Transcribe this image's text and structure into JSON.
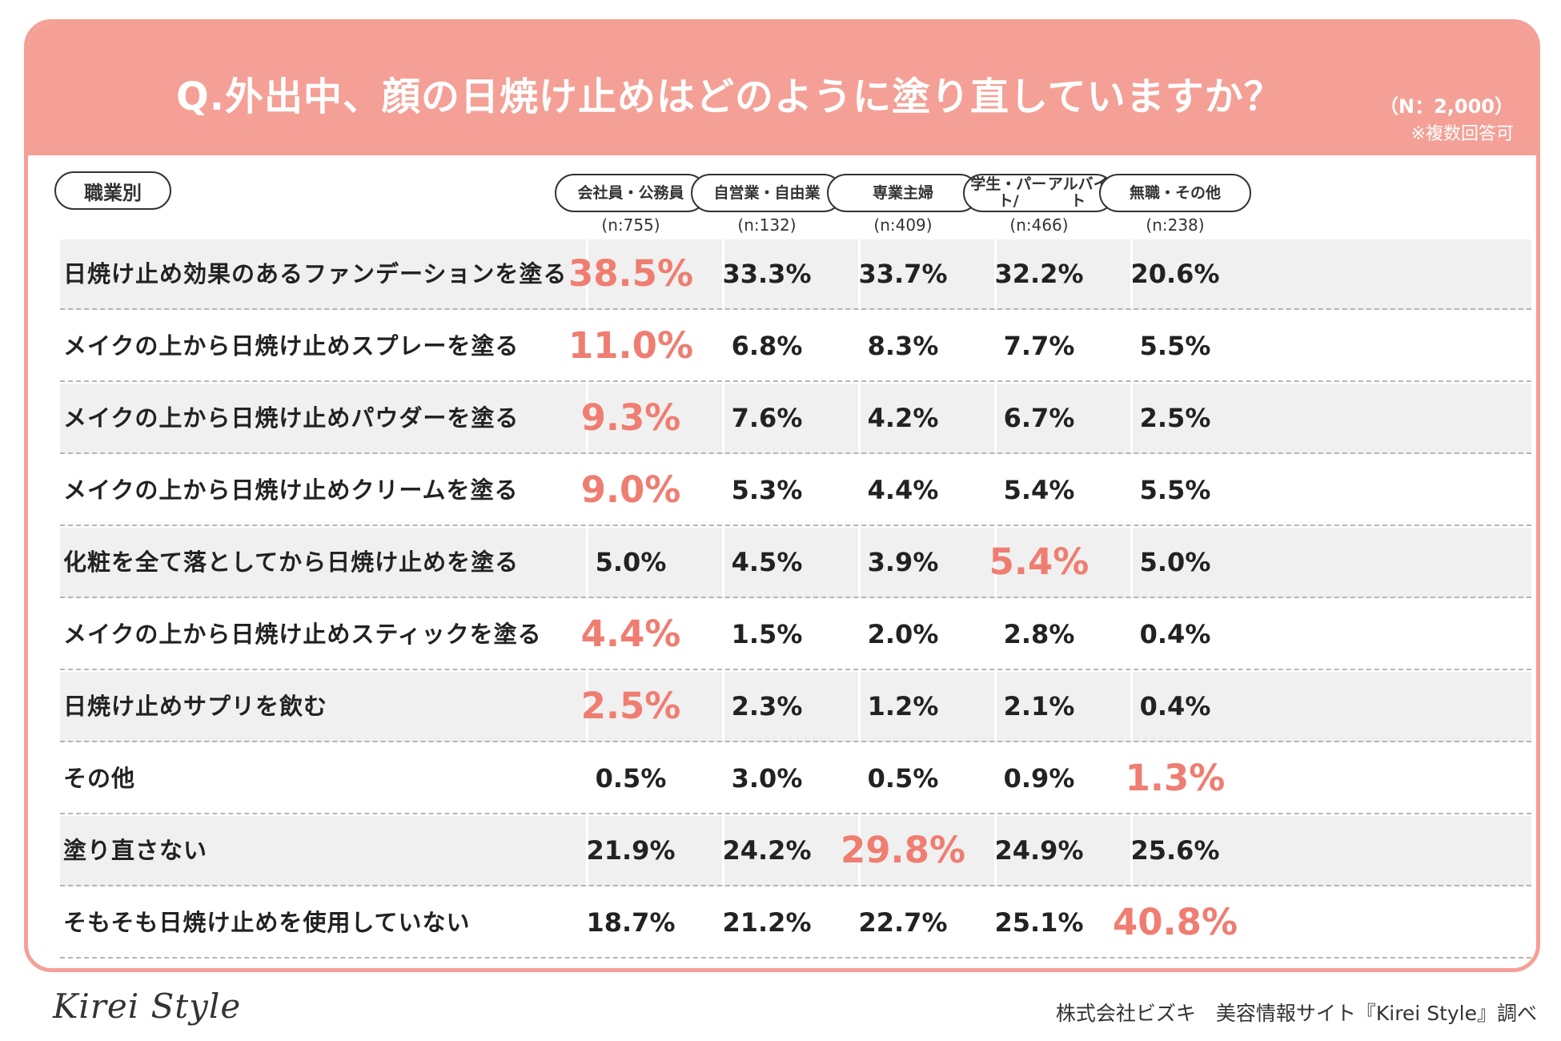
{
  "header": {
    "title": "Q.外出中、顔の日焼け止めはどのように塗り直していますか？",
    "n_total": "（N：2,000）",
    "note": "※複数回答可"
  },
  "category_label": "職業別",
  "footer": {
    "logo": "Kirei Style",
    "credit": "株式会社ビズキ　美容情報サイト『Kirei Style』調べ"
  },
  "colors": {
    "accent": "#f4a096",
    "highlight": "#ef7d71"
  },
  "chart_data": {
    "type": "table",
    "columns": [
      {
        "name": "会社員・公務員",
        "lines": [
          "会社員・公務員"
        ],
        "n": "(n:755)"
      },
      {
        "name": "自営業・自由業",
        "lines": [
          "自営業・自由業"
        ],
        "n": "(n:132)"
      },
      {
        "name": "専業主婦",
        "lines": [
          "専業主婦"
        ],
        "n": "(n:409)"
      },
      {
        "name": "学生・パート/アルバイト",
        "lines": [
          "学生・パート/",
          "アルバイト"
        ],
        "n": "(n:466)"
      },
      {
        "name": "無職・その他",
        "lines": [
          "無職・その他"
        ],
        "n": "(n:238)"
      }
    ],
    "rows": [
      {
        "label": "日焼け止め効果のあるファンデーションを塗る",
        "values": [
          "38.5%",
          "33.3%",
          "33.7%",
          "32.2%",
          "20.6%"
        ],
        "highlight": 0
      },
      {
        "label": "メイクの上から日焼け止めスプレーを塗る",
        "values": [
          "11.0%",
          "6.8%",
          "8.3%",
          "7.7%",
          "5.5%"
        ],
        "highlight": 0
      },
      {
        "label": "メイクの上から日焼け止めパウダーを塗る",
        "values": [
          "9.3%",
          "7.6%",
          "4.2%",
          "6.7%",
          "2.5%"
        ],
        "highlight": 0
      },
      {
        "label": "メイクの上から日焼け止めクリームを塗る",
        "values": [
          "9.0%",
          "5.3%",
          "4.4%",
          "5.4%",
          "5.5%"
        ],
        "highlight": 0
      },
      {
        "label": "化粧を全て落としてから日焼け止めを塗る",
        "values": [
          "5.0%",
          "4.5%",
          "3.9%",
          "5.4%",
          "5.0%"
        ],
        "highlight": 3
      },
      {
        "label": "メイクの上から日焼け止めスティックを塗る",
        "values": [
          "4.4%",
          "1.5%",
          "2.0%",
          "2.8%",
          "0.4%"
        ],
        "highlight": 0
      },
      {
        "label": "日焼け止めサプリを飲む",
        "values": [
          "2.5%",
          "2.3%",
          "1.2%",
          "2.1%",
          "0.4%"
        ],
        "highlight": 0
      },
      {
        "label": "その他",
        "values": [
          "0.5%",
          "3.0%",
          "0.5%",
          "0.9%",
          "1.3%"
        ],
        "highlight": 4
      },
      {
        "label": "塗り直さない",
        "values": [
          "21.9%",
          "24.2%",
          "29.8%",
          "24.9%",
          "25.6%"
        ],
        "highlight": 2
      },
      {
        "label": "そもそも日焼け止めを使用していない",
        "values": [
          "18.7%",
          "21.2%",
          "22.7%",
          "25.1%",
          "40.8%"
        ],
        "highlight": 4
      }
    ]
  }
}
